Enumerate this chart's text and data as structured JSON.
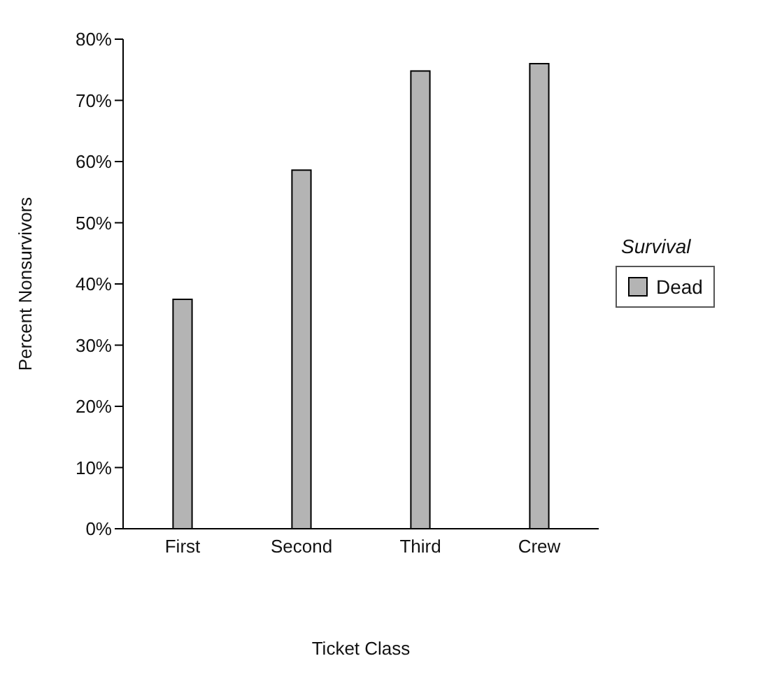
{
  "chart_data": {
    "type": "bar",
    "xlabel": "Ticket Class",
    "ylabel": "Percent Nonsurvivors",
    "legend_title": "Survival",
    "categories": [
      "First",
      "Second",
      "Third",
      "Crew"
    ],
    "series": [
      {
        "name": "Dead",
        "color": "#b4b4b4",
        "values": [
          37.5,
          58.6,
          74.8,
          76.0
        ]
      }
    ],
    "ylim": [
      0,
      80
    ],
    "yticks": [
      {
        "value": 0,
        "label": "0%"
      },
      {
        "value": 10,
        "label": "10%"
      },
      {
        "value": 20,
        "label": "20%"
      },
      {
        "value": 30,
        "label": "30%"
      },
      {
        "value": 40,
        "label": "40%"
      },
      {
        "value": 50,
        "label": "50%"
      },
      {
        "value": 60,
        "label": "60%"
      },
      {
        "value": 70,
        "label": "70%"
      },
      {
        "value": 80,
        "label": "80%"
      }
    ],
    "grid": false,
    "legend": "right"
  }
}
